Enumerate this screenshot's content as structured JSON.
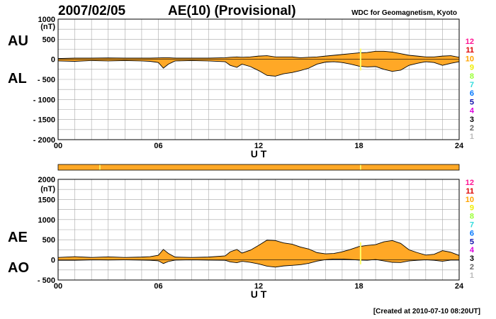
{
  "header": {
    "date": "2007/02/05",
    "title": "AE(10) (Provisional)",
    "source": "WDC for Geomagnetism, Kyoto"
  },
  "footer": {
    "created": "[Created at 2010-07-10 08:20UT]"
  },
  "colors": {
    "fill": "#ffa826",
    "grid": "#a6a6a6",
    "quality_bar": "#ffa826",
    "quality_mark": "#ffff66"
  },
  "legend": [
    {
      "label": "12",
      "color": "#ff1493"
    },
    {
      "label": "11",
      "color": "#dd0000"
    },
    {
      "label": "10",
      "color": "#ffa500"
    },
    {
      "label": "9",
      "color": "#eeee00"
    },
    {
      "label": "8",
      "color": "#99ff33"
    },
    {
      "label": "7",
      "color": "#33dddd"
    },
    {
      "label": "6",
      "color": "#0077ff"
    },
    {
      "label": "5",
      "color": "#1111aa"
    },
    {
      "label": "4",
      "color": "#dd00dd"
    },
    {
      "label": "3",
      "color": "#000000"
    },
    {
      "label": "2",
      "color": "#666666"
    },
    {
      "label": "1",
      "color": "#bbbbbb"
    }
  ],
  "quality_bar_marks_ut": [
    2.5,
    18.1
  ],
  "chart_data": [
    {
      "type": "area",
      "panel": "AU/AL",
      "ylabel_units": "(nT)",
      "xlabel": "U T",
      "ylim": [
        -2000,
        1000
      ],
      "yticks": [
        "1000",
        "500",
        "0",
        "- 500",
        "- 1000",
        "- 1500",
        "- 2000"
      ],
      "xlim": [
        0,
        24
      ],
      "xticks": [
        "00",
        "06",
        "12",
        "18",
        "24"
      ],
      "grid": true,
      "labels": {
        "upper": "AU",
        "lower": "AL"
      },
      "x": [
        0,
        1,
        2,
        3,
        4,
        5,
        5.5,
        6,
        6.3,
        6.6,
        7,
        8,
        9,
        10,
        10.3,
        10.7,
        11,
        11.5,
        12,
        12.5,
        13,
        13.5,
        14,
        14.5,
        15,
        15.5,
        16,
        16.5,
        17,
        17.5,
        18,
        18.5,
        19,
        19.5,
        20,
        20.5,
        21,
        21.5,
        22,
        22.5,
        23,
        23.5,
        24
      ],
      "series": [
        {
          "name": "AU",
          "values": [
            20,
            30,
            30,
            35,
            30,
            30,
            30,
            35,
            40,
            40,
            30,
            30,
            30,
            40,
            50,
            60,
            50,
            60,
            80,
            90,
            60,
            60,
            60,
            40,
            50,
            60,
            80,
            100,
            120,
            140,
            160,
            170,
            200,
            200,
            180,
            140,
            100,
            80,
            60,
            60,
            80,
            90,
            50
          ]
        },
        {
          "name": "AL",
          "values": [
            -40,
            -50,
            -30,
            -40,
            -30,
            -40,
            -50,
            -80,
            -220,
            -120,
            -40,
            -30,
            -40,
            -60,
            -150,
            -200,
            -120,
            -180,
            -280,
            -400,
            -420,
            -360,
            -330,
            -280,
            -220,
            -120,
            -70,
            -60,
            -80,
            -120,
            -170,
            -190,
            -180,
            -250,
            -300,
            -270,
            -150,
            -100,
            -60,
            -80,
            -150,
            -100,
            -60
          ]
        }
      ]
    },
    {
      "type": "area",
      "panel": "AE/AO",
      "ylabel_units": "(nT)",
      "xlabel": "U T",
      "ylim": [
        -500,
        2000
      ],
      "yticks": [
        "2000",
        "1500",
        "1000",
        "500",
        "0",
        "- 500"
      ],
      "xlim": [
        0,
        24
      ],
      "xticks": [
        "00",
        "06",
        "12",
        "18",
        "24"
      ],
      "grid": true,
      "labels": {
        "upper": "AE",
        "lower": "AO"
      },
      "x": [
        0,
        1,
        2,
        3,
        4,
        5,
        5.5,
        6,
        6.3,
        6.6,
        7,
        8,
        9,
        10,
        10.3,
        10.7,
        11,
        11.5,
        12,
        12.5,
        13,
        13.5,
        14,
        14.5,
        15,
        15.5,
        16,
        16.5,
        17,
        17.5,
        18,
        18.5,
        19,
        19.5,
        20,
        20.5,
        21,
        21.5,
        22,
        22.5,
        23,
        23.5,
        24
      ],
      "series": [
        {
          "name": "AE",
          "values": [
            60,
            80,
            60,
            75,
            60,
            70,
            80,
            115,
            260,
            160,
            70,
            60,
            70,
            100,
            200,
            260,
            170,
            240,
            360,
            490,
            480,
            420,
            390,
            320,
            270,
            180,
            150,
            160,
            200,
            260,
            330,
            360,
            380,
            450,
            480,
            410,
            250,
            180,
            120,
            140,
            230,
            190,
            110
          ]
        },
        {
          "name": "AO",
          "values": [
            -10,
            -10,
            0,
            -3,
            0,
            -5,
            -10,
            -23,
            -90,
            -40,
            -5,
            0,
            -5,
            -10,
            -50,
            -70,
            -35,
            -60,
            -100,
            -155,
            -180,
            -150,
            -135,
            -120,
            -85,
            -30,
            5,
            20,
            20,
            10,
            -5,
            -10,
            10,
            -25,
            -60,
            -65,
            -25,
            -10,
            0,
            -10,
            -35,
            -5,
            -5
          ]
        }
      ]
    }
  ]
}
